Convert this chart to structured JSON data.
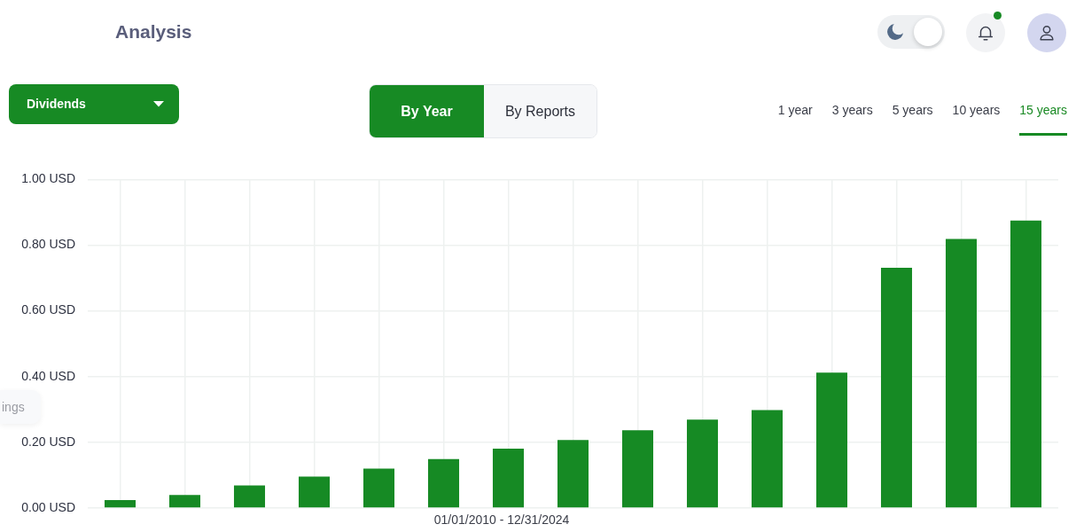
{
  "chart_data": {
    "type": "bar",
    "title": "Analysis",
    "xlabel": "01/01/2010 - 12/31/2024",
    "categories": [
      null,
      null,
      null,
      null,
      null,
      null,
      null,
      null,
      null,
      null,
      null,
      null,
      null,
      null,
      null
    ],
    "values": [
      0.024,
      0.04,
      0.069,
      0.096,
      0.12,
      0.149,
      0.181,
      0.207,
      0.237,
      0.269,
      0.298,
      0.412,
      0.731,
      0.819,
      0.875
    ],
    "color": "#168a24",
    "ylim": [
      0,
      1
    ],
    "yticks": [
      {
        "value": 0,
        "label": "0.00 USD"
      },
      {
        "value": 0.2,
        "label": "0.20 USD"
      },
      {
        "value": 0.4,
        "label": "0.40 USD"
      },
      {
        "value": 0.6,
        "label": "0.60 USD"
      },
      {
        "value": 0.8,
        "label": "0.80 USD"
      },
      {
        "value": 1,
        "label": "1.00 USD"
      }
    ],
    "grid": true,
    "tick_labels": "y",
    "annotations": [
      "Dividends",
      "By Year",
      "By Reports",
      "1 year",
      "3 years",
      "5 years",
      "10 years",
      "15 years",
      "ings"
    ]
  }
}
